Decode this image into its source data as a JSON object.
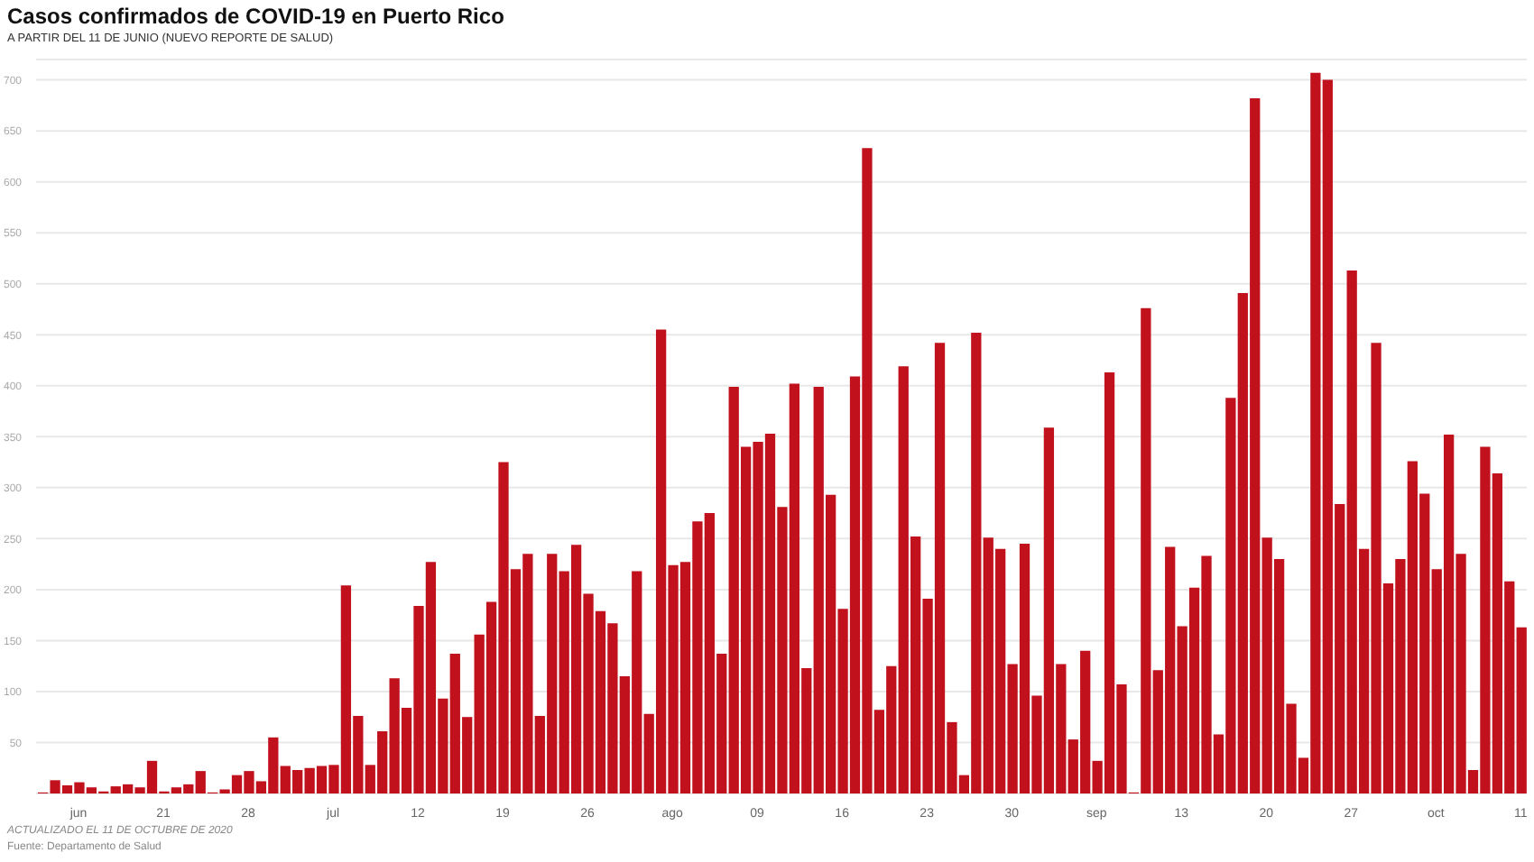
{
  "chart_data": {
    "type": "bar",
    "title": "Casos confirmados de COVID-19 en Puerto Rico",
    "subtitle": "A PARTIR DEL 11 DE JUNIO (NUEVO REPORTE DE SALUD)",
    "annotations": [
      "ACTUALIZADO EL 11 DE OCTUBRE DE 2020",
      "Fuente: Departamento de Salud"
    ],
    "x": [
      "2020-06-11",
      "2020-06-12",
      "2020-06-13",
      "2020-06-14",
      "2020-06-15",
      "2020-06-16",
      "2020-06-17",
      "2020-06-18",
      "2020-06-19",
      "2020-06-20",
      "2020-06-21",
      "2020-06-22",
      "2020-06-23",
      "2020-06-24",
      "2020-06-25",
      "2020-06-26",
      "2020-06-27",
      "2020-06-28",
      "2020-06-29",
      "2020-06-30",
      "2020-07-01",
      "2020-07-02",
      "2020-07-03",
      "2020-07-04",
      "2020-07-05",
      "2020-07-06",
      "2020-07-07",
      "2020-07-08",
      "2020-07-09",
      "2020-07-10",
      "2020-07-11",
      "2020-07-12",
      "2020-07-13",
      "2020-07-14",
      "2020-07-15",
      "2020-07-16",
      "2020-07-17",
      "2020-07-18",
      "2020-07-19",
      "2020-07-20",
      "2020-07-21",
      "2020-07-22",
      "2020-07-23",
      "2020-07-24",
      "2020-07-25",
      "2020-07-26",
      "2020-07-27",
      "2020-07-28",
      "2020-07-29",
      "2020-07-30",
      "2020-07-31",
      "2020-08-01",
      "2020-08-02",
      "2020-08-03",
      "2020-08-04",
      "2020-08-05",
      "2020-08-06",
      "2020-08-07",
      "2020-08-08",
      "2020-08-09",
      "2020-08-10",
      "2020-08-11",
      "2020-08-12",
      "2020-08-13",
      "2020-08-14",
      "2020-08-15",
      "2020-08-16",
      "2020-08-17",
      "2020-08-18",
      "2020-08-19",
      "2020-08-20",
      "2020-08-21",
      "2020-08-22",
      "2020-08-23",
      "2020-08-24",
      "2020-08-25",
      "2020-08-26",
      "2020-08-27",
      "2020-08-28",
      "2020-08-29",
      "2020-08-30",
      "2020-08-31",
      "2020-09-01",
      "2020-09-02",
      "2020-09-03",
      "2020-09-04",
      "2020-09-05",
      "2020-09-06",
      "2020-09-07",
      "2020-09-08",
      "2020-09-09",
      "2020-09-10",
      "2020-09-11",
      "2020-09-12",
      "2020-09-13",
      "2020-09-14",
      "2020-09-15",
      "2020-09-16",
      "2020-09-17",
      "2020-09-18",
      "2020-09-19",
      "2020-09-20",
      "2020-09-21",
      "2020-09-22",
      "2020-09-23",
      "2020-09-24",
      "2020-09-25",
      "2020-09-26",
      "2020-09-27",
      "2020-09-28",
      "2020-09-29",
      "2020-09-30",
      "2020-10-01",
      "2020-10-02",
      "2020-10-03",
      "2020-10-04",
      "2020-10-05",
      "2020-10-06",
      "2020-10-07",
      "2020-10-08",
      "2020-10-09",
      "2020-10-10",
      "2020-10-11"
    ],
    "values": [
      1,
      13,
      8,
      11,
      6,
      2,
      7,
      9,
      6,
      32,
      2,
      6,
      9,
      22,
      1,
      4,
      18,
      22,
      12,
      55,
      27,
      23,
      25,
      27,
      28,
      204,
      76,
      28,
      61,
      113,
      84,
      184,
      227,
      93,
      137,
      75,
      156,
      188,
      325,
      220,
      235,
      76,
      235,
      218,
      244,
      196,
      179,
      167,
      115,
      218,
      78,
      455,
      224,
      227,
      267,
      275,
      137,
      399,
      340,
      345,
      353,
      281,
      402,
      123,
      399,
      293,
      181,
      409,
      633,
      82,
      125,
      419,
      252,
      191,
      442,
      70,
      18,
      452,
      251,
      240,
      127,
      245,
      96,
      359,
      127,
      53,
      140,
      32,
      413,
      107,
      1,
      476,
      121,
      242,
      164,
      202,
      233,
      58,
      388,
      491,
      682,
      251,
      230,
      88,
      35,
      707,
      700,
      284,
      513,
      240,
      442,
      206,
      230,
      326,
      294,
      220,
      352,
      235,
      23,
      340,
      314,
      208,
      163
    ],
    "color": "#c0111d",
    "xlim": [
      "2020-06-10T12:00",
      "2020-10-11T12:00"
    ],
    "xticks": [
      {
        "value": "2020-06-14",
        "label": "jun"
      },
      {
        "value": "2020-06-21",
        "label": "21"
      },
      {
        "value": "2020-06-28",
        "label": "28"
      },
      {
        "value": "2020-07-05",
        "label": "jul"
      },
      {
        "value": "2020-07-12",
        "label": "12"
      },
      {
        "value": "2020-07-19",
        "label": "19"
      },
      {
        "value": "2020-07-26",
        "label": "26"
      },
      {
        "value": "2020-08-02",
        "label": "ago"
      },
      {
        "value": "2020-08-09",
        "label": "09"
      },
      {
        "value": "2020-08-16",
        "label": "16"
      },
      {
        "value": "2020-08-23",
        "label": "23"
      },
      {
        "value": "2020-08-30",
        "label": "30"
      },
      {
        "value": "2020-09-06",
        "label": "sep"
      },
      {
        "value": "2020-09-13",
        "label": "13"
      },
      {
        "value": "2020-09-20",
        "label": "20"
      },
      {
        "value": "2020-09-27",
        "label": "27"
      },
      {
        "value": "2020-10-04",
        "label": "oct"
      },
      {
        "value": "2020-10-11",
        "label": "11"
      }
    ],
    "ylim": [
      0,
      720
    ],
    "yticks": [
      50,
      100,
      150,
      200,
      250,
      300,
      350,
      400,
      450,
      500,
      550,
      600,
      650,
      700
    ],
    "grid": "y"
  }
}
